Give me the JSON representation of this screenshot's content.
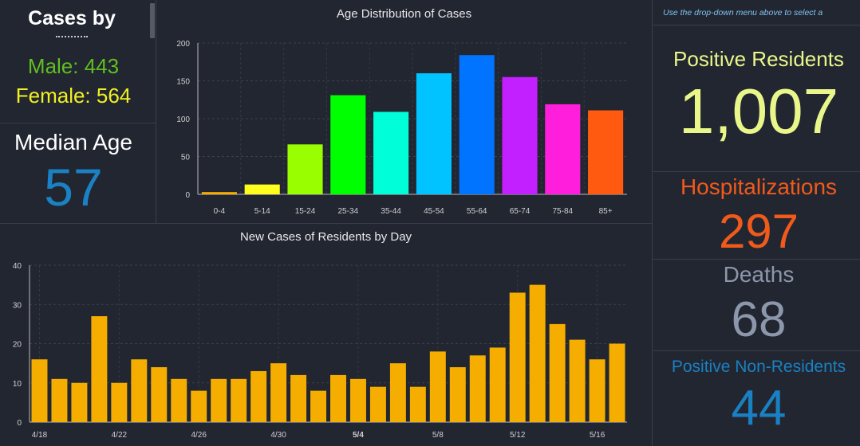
{
  "left_panel": {
    "header": "Cases by",
    "male_label": "Male: 443",
    "female_label": "Female: 564",
    "median_label": "Median Age",
    "median_value": "57"
  },
  "right_panel": {
    "note": "Use the drop-down menu above to select a",
    "positive_residents_label": "Positive Residents",
    "positive_residents_value": "1,007",
    "hospitalizations_label": "Hospitalizations",
    "hospitalizations_value": "297",
    "deaths_label": "Deaths",
    "deaths_value": "68",
    "nonresidents_label": "Positive Non-Residents",
    "nonresidents_value": "44"
  },
  "colors": {
    "male": "#5fbf1f",
    "female": "#f0f023",
    "median": "#1a82c4",
    "residents": "#e9f68a",
    "hospitalizations": "#f05a1b",
    "deaths": "#8d97ab",
    "nonresidents": "#1a80c2",
    "daily_bar": "#f5ad00"
  },
  "chart_data": [
    {
      "type": "bar",
      "title": "Age Distribution of Cases",
      "categories": [
        "0-4",
        "5-14",
        "15-24",
        "25-34",
        "35-44",
        "45-54",
        "55-64",
        "65-74",
        "75-84",
        "85+"
      ],
      "values": [
        3,
        13,
        66,
        131,
        109,
        160,
        184,
        155,
        119,
        111
      ],
      "colors": [
        "#f5ad00",
        "#ffff1e",
        "#99ff00",
        "#00ff00",
        "#00ffd9",
        "#00c3ff",
        "#0073ff",
        "#c320ff",
        "#ff1edc",
        "#ff5a0f"
      ],
      "ylim": [
        0,
        200
      ],
      "yticks": [
        0,
        50,
        100,
        150,
        200
      ],
      "grid": true
    },
    {
      "type": "bar",
      "title": "New Cases of Residents by Day",
      "categories": [
        "4/18",
        "4/19",
        "4/20",
        "4/21",
        "4/22",
        "4/23",
        "4/24",
        "4/25",
        "4/26",
        "4/27",
        "4/28",
        "4/29",
        "4/30",
        "5/1",
        "5/2",
        "5/3",
        "5/4",
        "5/5",
        "5/6",
        "5/7",
        "5/8",
        "5/9",
        "5/10",
        "5/11",
        "5/12",
        "5/13",
        "5/14",
        "5/15",
        "5/16",
        "5/17"
      ],
      "values": [
        16,
        11,
        10,
        27,
        10,
        16,
        14,
        11,
        8,
        11,
        11,
        13,
        15,
        12,
        8,
        12,
        11,
        9,
        15,
        9,
        18,
        14,
        17,
        19,
        33,
        35,
        25,
        21,
        16,
        20
      ],
      "xtick_labels": [
        "4/18",
        "4/22",
        "4/26",
        "4/30",
        "5/4",
        "5/8",
        "5/12",
        "5/16"
      ],
      "bold_tick": "5/4",
      "ylim": [
        0,
        40
      ],
      "yticks": [
        0,
        10,
        20,
        30,
        40
      ],
      "grid": true
    }
  ]
}
